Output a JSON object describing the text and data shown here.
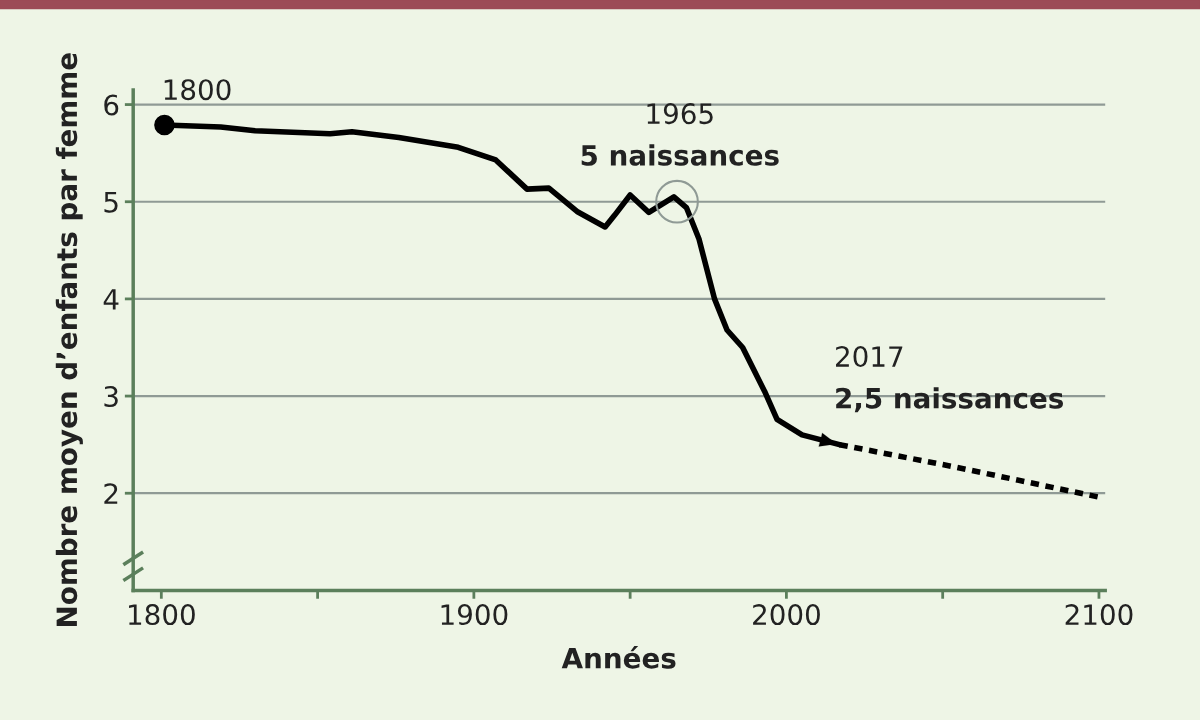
{
  "chart_data": {
    "type": "line",
    "xlabel": "Années",
    "ylabel": "Nombre moyen d’enfants par femme",
    "xlim": [
      1791,
      2102
    ],
    "ylim": [
      1.0,
      6.15
    ],
    "xticks": [
      1800,
      {
        "value": 1850,
        "label": null
      },
      1900,
      {
        "value": 1950,
        "label": null
      },
      2000,
      {
        "value": 2050,
        "label": null
      },
      2100
    ],
    "yticks": [
      2,
      3,
      4,
      5,
      6
    ],
    "grid": "y",
    "legend": false,
    "series": [
      {
        "type": "scatter",
        "color": "#000000",
        "marker": "circle",
        "x": [
          1801
        ],
        "values": [
          5.79
        ]
      },
      {
        "color": "#000000",
        "marker": "none",
        "line_style": "solid",
        "x": [
          1801,
          1819,
          1830,
          1854,
          1861,
          1876,
          1895,
          1907,
          1911,
          1917,
          1924,
          1933,
          1942,
          1945,
          1950,
          1956,
          1964,
          1968,
          1972,
          1977,
          1981,
          1986,
          1993,
          1997,
          2005,
          2017
        ],
        "values": [
          5.79,
          5.77,
          5.73,
          5.7,
          5.72,
          5.66,
          5.56,
          5.43,
          5.31,
          5.13,
          5.14,
          4.9,
          4.74,
          4.86,
          5.07,
          4.89,
          5.05,
          4.94,
          4.62,
          4.0,
          3.68,
          3.5,
          3.05,
          2.76,
          2.6,
          2.5
        ]
      },
      {
        "color": "#000000",
        "marker": "none",
        "line_style": "dashed",
        "x": [
          2017,
          2054,
          2100
        ],
        "values": [
          2.5,
          2.27,
          1.96
        ]
      }
    ],
    "annotations": [
      {
        "text": "1800",
        "x": 1801,
        "y": 5.79
      },
      {
        "text": "1965",
        "x": 1965,
        "y": 5
      },
      {
        "text": "5 naissances",
        "x": 1965,
        "y": 5
      },
      {
        "text": "2017",
        "x": 2017,
        "y": 2.5
      },
      {
        "text": "2,5 naissances",
        "x": 2017,
        "y": 2.5
      }
    ]
  }
}
